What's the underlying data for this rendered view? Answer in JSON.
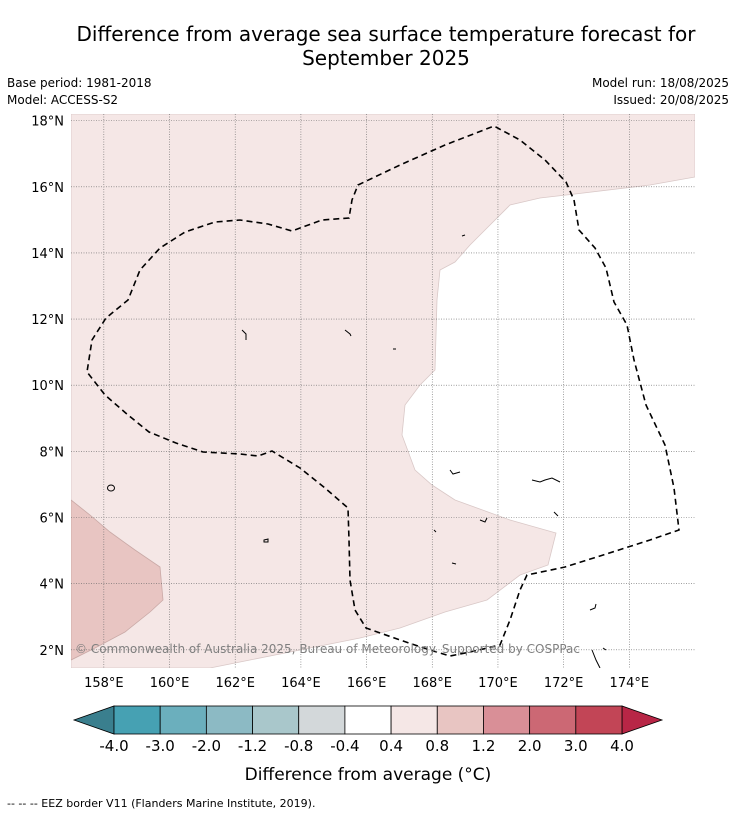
{
  "title_line1": "Difference from average sea surface temperature forecast for",
  "title_line2": "September 2025",
  "base_period": "Base period: 1981-2018",
  "model": "Model: ACCESS-S2",
  "model_run": "Model run: 18/08/2025",
  "issued": "Issued: 20/08/2025",
  "map": {
    "lon_ticks": [
      "158°E",
      "160°E",
      "162°E",
      "164°E",
      "166°E",
      "168°E",
      "170°E",
      "172°E",
      "174°E"
    ],
    "lat_ticks": [
      "2°N",
      "4°N",
      "6°N",
      "8°N",
      "10°N",
      "12°N",
      "14°N",
      "16°N",
      "18°N"
    ],
    "copyright": "© Commonwealth of Australia 2025, Bureau of Meteorology. Supported by COSPPac",
    "colors": {
      "band_0.4_0.8": "#f5e7e6",
      "band_0.8_1.2": "#e8c5c2",
      "grid": "#666666"
    }
  },
  "colorbar": {
    "labels": [
      "-4.0",
      "-3.0",
      "-2.0",
      "-1.2",
      "-0.8",
      "-0.4",
      "0.4",
      "0.8",
      "1.2",
      "2.0",
      "3.0",
      "4.0"
    ],
    "colors": [
      "#46a1b3",
      "#6bafbd",
      "#8cbac4",
      "#a9c7cb",
      "#d3d8da",
      "#ffffff",
      "#f5e7e6",
      "#e8c5c2",
      "#d98f97",
      "#cc6874",
      "#c24556"
    ],
    "under_color": "#3a7f8e",
    "over_color": "#b82646",
    "label": "Difference from average (°C)"
  },
  "footer": "--  --  -- EEZ border V11 (Flanders Marine Institute, 2019)."
}
